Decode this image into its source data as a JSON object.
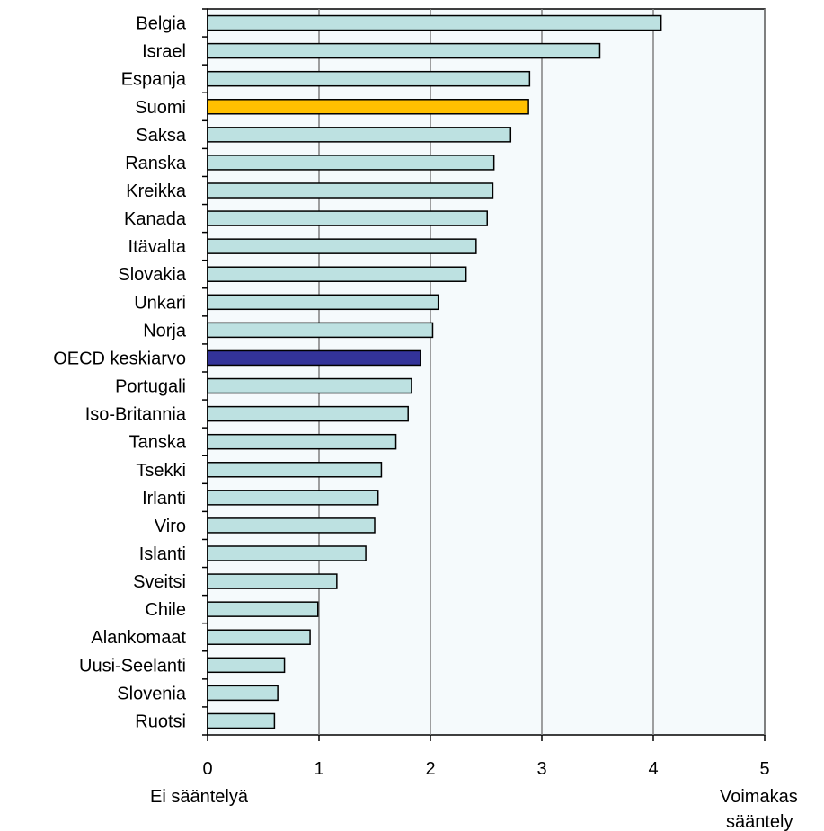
{
  "colors": {
    "plot_background": "#f5fafc",
    "default_bar": "#bde1e1",
    "highlight_finland": "#ffc000",
    "highlight_oecd": "#333399",
    "bar_border": "#000000",
    "gridline": "#808080"
  },
  "chart_data": {
    "type": "bar",
    "orientation": "horizontal",
    "categories": [
      "Belgia",
      "Israel",
      "Espanja",
      "Suomi",
      "Saksa",
      "Ranska",
      "Kreikka",
      "Kanada",
      "Itävalta",
      "Slovakia",
      "Unkari",
      "Norja",
      "OECD keskiarvo",
      "Portugali",
      "Iso-Britannia",
      "Tanska",
      "Tsekki",
      "Irlanti",
      "Viro",
      "Islanti",
      "Sveitsi",
      "Chile",
      "Alankomaat",
      "Uusi-Seelanti",
      "Slovenia",
      "Ruotsi"
    ],
    "values": [
      4.07,
      3.52,
      2.89,
      2.88,
      2.72,
      2.57,
      2.56,
      2.51,
      2.41,
      2.32,
      2.07,
      2.02,
      1.91,
      1.83,
      1.8,
      1.69,
      1.56,
      1.53,
      1.5,
      1.42,
      1.16,
      0.99,
      0.92,
      0.69,
      0.63,
      0.6
    ],
    "highlights": {
      "Suomi": "highlight_finland",
      "OECD keskiarvo": "highlight_oecd"
    },
    "xlim": [
      0,
      5
    ],
    "xticks": [
      "0",
      "1",
      "2",
      "3",
      "4",
      "5"
    ],
    "x_end_labels": {
      "low": "Ei sääntelyä",
      "high_line1": "Voimakas",
      "high_line2": "sääntely"
    },
    "title": "",
    "xlabel": "",
    "ylabel": "",
    "grid": "vertical",
    "legend": "none"
  }
}
